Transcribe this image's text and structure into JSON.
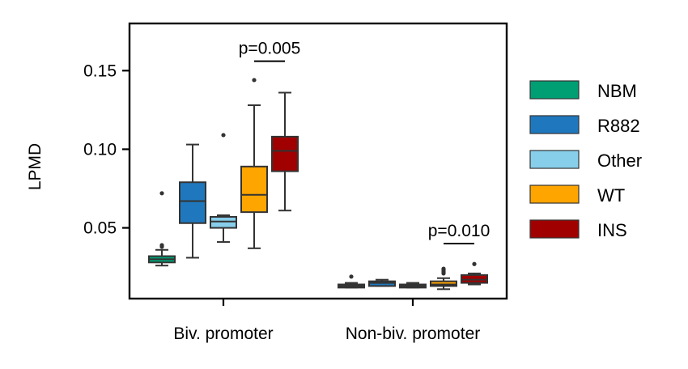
{
  "chart_data": {
    "type": "box",
    "ylabel": "LPMD",
    "xlabel": "",
    "ylim": [
      0.005,
      0.18
    ],
    "yticks": [
      0.05,
      0.1,
      0.15
    ],
    "ytick_labels": [
      "0.05",
      "0.10",
      "0.15"
    ],
    "categories": [
      "Biv. promoter",
      "Non-biv. promoter"
    ],
    "legend_position": "right",
    "series": [
      {
        "name": "NBM",
        "color": "#009e73",
        "boxes": [
          {
            "whisker_low": 0.026,
            "q1": 0.028,
            "median": 0.03,
            "q3": 0.032,
            "whisker_high": 0.036,
            "outliers": [
              0.038,
              0.039,
              0.072
            ]
          },
          {
            "whisker_low": 0.012,
            "q1": 0.012,
            "median": 0.013,
            "q3": 0.014,
            "whisker_high": 0.015,
            "outliers": [
              0.019
            ]
          }
        ]
      },
      {
        "name": "R882",
        "color": "#1f78be",
        "boxes": [
          {
            "whisker_low": 0.031,
            "q1": 0.053,
            "median": 0.067,
            "q3": 0.079,
            "whisker_high": 0.103,
            "outliers": []
          },
          {
            "whisker_low": 0.013,
            "q1": 0.013,
            "median": 0.015,
            "q3": 0.016,
            "whisker_high": 0.017,
            "outliers": []
          }
        ]
      },
      {
        "name": "Other",
        "color": "#87ceeb",
        "boxes": [
          {
            "whisker_low": 0.041,
            "q1": 0.05,
            "median": 0.054,
            "q3": 0.057,
            "whisker_high": 0.058,
            "outliers": [
              0.109
            ]
          },
          {
            "whisker_low": 0.012,
            "q1": 0.012,
            "median": 0.013,
            "q3": 0.014,
            "whisker_high": 0.015,
            "outliers": []
          }
        ]
      },
      {
        "name": "WT",
        "color": "#ffa500",
        "boxes": [
          {
            "whisker_low": 0.037,
            "q1": 0.06,
            "median": 0.071,
            "q3": 0.089,
            "whisker_high": 0.128,
            "outliers": [
              0.144
            ]
          },
          {
            "whisker_low": 0.011,
            "q1": 0.013,
            "median": 0.014,
            "q3": 0.016,
            "whisker_high": 0.018,
            "outliers": [
              0.021,
              0.022,
              0.023,
              0.024
            ]
          }
        ]
      },
      {
        "name": "INS",
        "color": "#a00000",
        "boxes": [
          {
            "whisker_low": 0.061,
            "q1": 0.086,
            "median": 0.099,
            "q3": 0.108,
            "whisker_high": 0.136,
            "outliers": []
          },
          {
            "whisker_low": 0.014,
            "q1": 0.015,
            "median": 0.017,
            "q3": 0.02,
            "whisker_high": 0.021,
            "outliers": [
              0.027
            ]
          }
        ]
      }
    ],
    "annotations": [
      {
        "text": "p=0.005",
        "category": 0,
        "between_series": [
          3,
          4
        ],
        "y": 0.156
      },
      {
        "text": "p=0.010",
        "category": 1,
        "between_series": [
          3,
          4
        ],
        "y": 0.04
      }
    ]
  }
}
